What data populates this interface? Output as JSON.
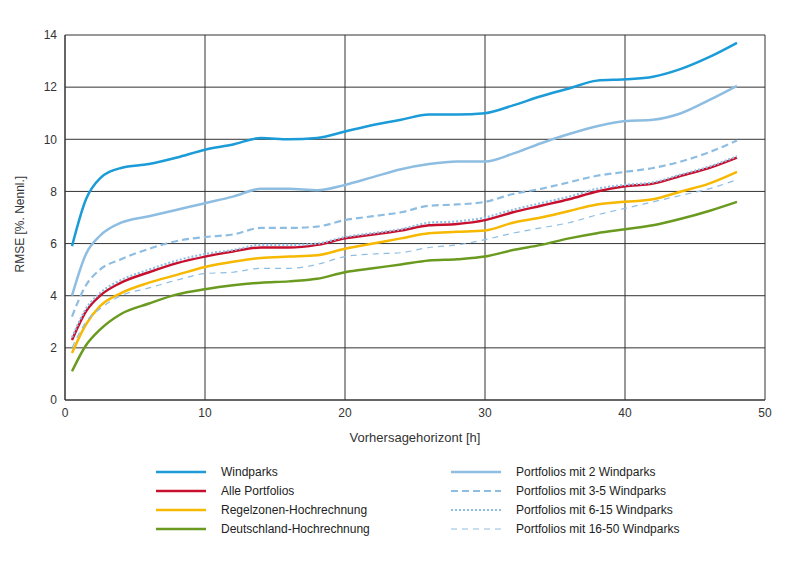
{
  "chart_data": {
    "type": "line",
    "x_label": "Vorhersagehorizont [h]",
    "y_label": "RMSE [%. Nennl.]",
    "xlim": [
      0,
      50
    ],
    "xticks": [
      0,
      10,
      20,
      30,
      40,
      50
    ],
    "ylim": [
      0,
      14
    ],
    "yticks": [
      0,
      2,
      4,
      6,
      8,
      10,
      12,
      14
    ],
    "grid": true,
    "legend": "bottom",
    "x": [
      0.5,
      1.5,
      2.5,
      4,
      6,
      8,
      10,
      12,
      14,
      16,
      18,
      20,
      22,
      24,
      26,
      28,
      30,
      32,
      34,
      36,
      38,
      40,
      42,
      44,
      46,
      48
    ],
    "series": [
      {
        "name": "Windparks",
        "color": "#1b9bd7",
        "line_style": "solid",
        "values": [
          5.9,
          7.7,
          8.5,
          8.9,
          9.05,
          9.3,
          9.6,
          9.8,
          10.05,
          10.0,
          10.05,
          10.3,
          10.55,
          10.75,
          10.95,
          10.95,
          11.0,
          11.3,
          11.65,
          11.95,
          12.25,
          12.3,
          12.4,
          12.7,
          13.15,
          13.7
        ]
      },
      {
        "name": "Alle Portfolios",
        "color": "#c8102e",
        "line_style": "solid",
        "values": [
          2.3,
          3.4,
          4.0,
          4.5,
          4.9,
          5.25,
          5.5,
          5.7,
          5.85,
          5.85,
          5.95,
          6.2,
          6.35,
          6.5,
          6.7,
          6.75,
          6.9,
          7.2,
          7.45,
          7.7,
          8.0,
          8.2,
          8.3,
          8.6,
          8.9,
          9.3
        ]
      },
      {
        "name": "Regelzonen-Hochrechnung",
        "color": "#f6b800",
        "line_style": "solid",
        "values": [
          1.8,
          2.9,
          3.6,
          4.1,
          4.5,
          4.8,
          5.1,
          5.3,
          5.45,
          5.5,
          5.55,
          5.8,
          6.0,
          6.2,
          6.4,
          6.45,
          6.5,
          6.8,
          7.0,
          7.25,
          7.5,
          7.6,
          7.7,
          8.0,
          8.3,
          8.75
        ]
      },
      {
        "name": "Deutschland-Hochrechnung",
        "color": "#6a9a1f",
        "line_style": "solid",
        "values": [
          1.1,
          2.1,
          2.7,
          3.3,
          3.7,
          4.05,
          4.25,
          4.4,
          4.5,
          4.55,
          4.65,
          4.9,
          5.05,
          5.2,
          5.35,
          5.4,
          5.5,
          5.75,
          5.95,
          6.2,
          6.4,
          6.55,
          6.7,
          6.95,
          7.25,
          7.6
        ]
      },
      {
        "name": "Portfolios mit 2 Windparks",
        "color": "#8ebde2",
        "line_style": "solid",
        "values": [
          4.0,
          5.6,
          6.3,
          6.8,
          7.05,
          7.3,
          7.55,
          7.8,
          8.1,
          8.1,
          8.05,
          8.25,
          8.55,
          8.85,
          9.05,
          9.15,
          9.15,
          9.45,
          9.85,
          10.2,
          10.5,
          10.7,
          10.75,
          11.0,
          11.5,
          12.05
        ]
      },
      {
        "name": "Portfolios mit 3-5 Windparks",
        "color": "#8ebde2",
        "line_style": "dashed",
        "values": [
          3.2,
          4.4,
          5.0,
          5.4,
          5.8,
          6.1,
          6.25,
          6.35,
          6.6,
          6.6,
          6.65,
          6.9,
          7.05,
          7.2,
          7.45,
          7.5,
          7.6,
          7.9,
          8.1,
          8.35,
          8.6,
          8.75,
          8.9,
          9.15,
          9.5,
          9.95
        ]
      },
      {
        "name": "Portfolios mit 6-15 Windparks",
        "color": "#8ebde2",
        "line_style": "dotted",
        "values": [
          2.4,
          3.5,
          4.1,
          4.6,
          5.0,
          5.35,
          5.6,
          5.75,
          5.95,
          5.95,
          6.0,
          6.25,
          6.4,
          6.55,
          6.8,
          6.85,
          7.0,
          7.3,
          7.55,
          7.8,
          8.1,
          8.25,
          8.35,
          8.65,
          8.95,
          9.35
        ]
      },
      {
        "name": "Portfolios mit 16-50 Windparks",
        "color": "#8ebde2",
        "line_style": "loosedash",
        "values": [
          2.0,
          3.0,
          3.5,
          4.0,
          4.3,
          4.6,
          4.85,
          4.9,
          5.05,
          5.05,
          5.2,
          5.5,
          5.6,
          5.65,
          5.85,
          5.95,
          6.15,
          6.4,
          6.6,
          6.8,
          7.1,
          7.35,
          7.6,
          7.85,
          8.1,
          8.45
        ]
      }
    ]
  }
}
